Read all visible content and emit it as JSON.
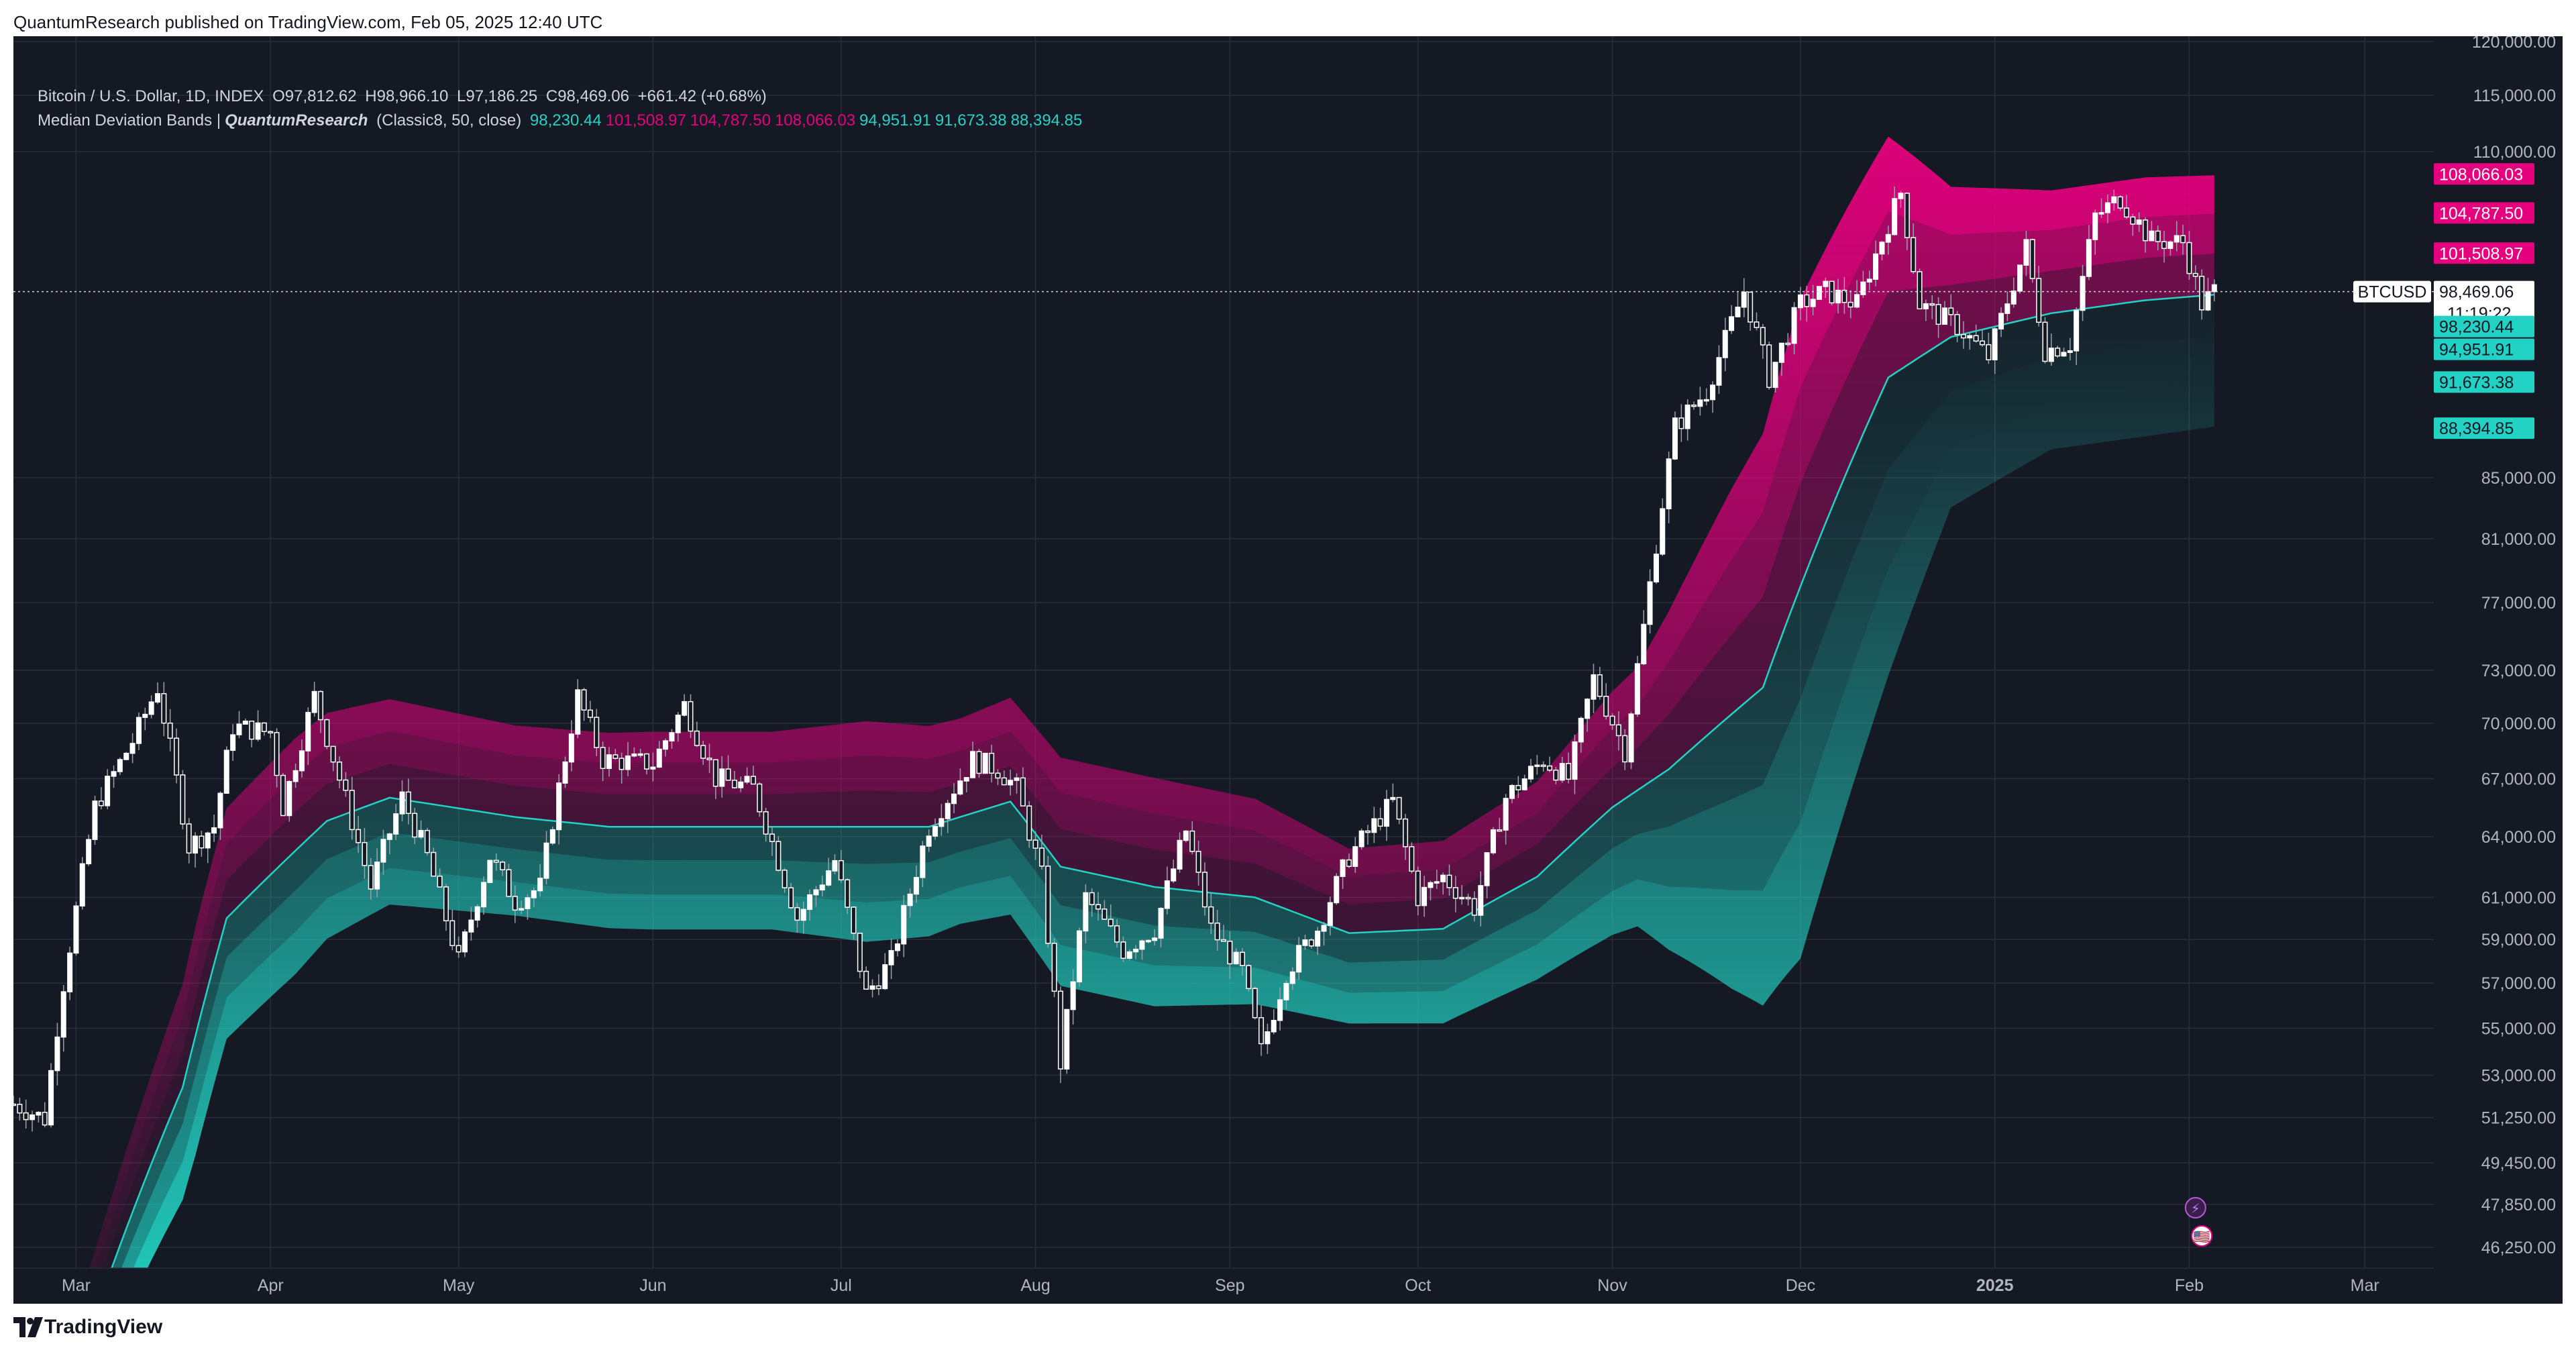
{
  "header": {
    "published_text": "QuantumResearch published on TradingView.com, Feb 05, 2025 12:40 UTC"
  },
  "legend": {
    "symbol_line": "Bitcoin / U.S. Dollar, 1D, INDEX",
    "ohlc": {
      "o_label": "O",
      "o_value": "97,812.62",
      "h_label": "H",
      "h_value": "98,966.10",
      "l_label": "L",
      "l_value": "97,186.25",
      "c_label": "C",
      "c_value": "98,469.06",
      "change": "+661.42 (+0.68%)"
    },
    "indicator_name": "Median Deviation Bands |",
    "indicator_author": "QuantumResearch",
    "indicator_params": "(Classic8, 50, close)",
    "indicator_values": [
      {
        "text": "98,230.44",
        "color": "#22d3c5"
      },
      {
        "text": "101,508.97",
        "color": "#e6007e"
      },
      {
        "text": "104,787.50",
        "color": "#e6007e"
      },
      {
        "text": "108,066.03",
        "color": "#e6007e"
      },
      {
        "text": "94,951.91",
        "color": "#22d3c5"
      },
      {
        "text": "91,673.38",
        "color": "#22d3c5"
      },
      {
        "text": "88,394.85",
        "color": "#22d3c5"
      }
    ]
  },
  "footer": {
    "brand": "TradingView"
  },
  "chart_data": {
    "type": "candlestick",
    "symbol": "BTCUSD",
    "last_price_label": "98,469.06",
    "countdown": "11:19:22",
    "colors": {
      "background": "#151924",
      "upper_band": "#e6007e",
      "lower_band": "#22d3c5",
      "candle_up": "#ffffff",
      "candle_down": "#ffffff",
      "grid": "#2a2e39",
      "axis_text": "#b2b5be"
    },
    "y_axis": {
      "ticks": [
        "120,000.00",
        "115,000.00",
        "110,000.00",
        "85,000.00",
        "81,000.00",
        "77,000.00",
        "73,000.00",
        "70,000.00",
        "67,000.00",
        "64,000.00",
        "61,000.00",
        "59,000.00",
        "57,000.00",
        "55,000.00",
        "53,000.00",
        "51,250.00",
        "49,450.00",
        "47,850.00",
        "46,250.00"
      ],
      "tick_values": [
        120000,
        115000,
        110000,
        85000,
        81000,
        77000,
        73000,
        70000,
        67000,
        64000,
        61000,
        59000,
        57000,
        55000,
        53000,
        51250,
        49450,
        47850,
        46250
      ],
      "scale": "log",
      "range": [
        45500,
        120500
      ]
    },
    "x_axis": {
      "months": [
        {
          "label": "Mar",
          "date": "2024-03-01"
        },
        {
          "label": "Apr",
          "date": "2024-04-01"
        },
        {
          "label": "May",
          "date": "2024-05-01"
        },
        {
          "label": "Jun",
          "date": "2024-06-01"
        },
        {
          "label": "Jul",
          "date": "2024-07-01"
        },
        {
          "label": "Aug",
          "date": "2024-08-01"
        },
        {
          "label": "Sep",
          "date": "2024-09-01"
        },
        {
          "label": "Oct",
          "date": "2024-10-01"
        },
        {
          "label": "Nov",
          "date": "2024-11-01"
        },
        {
          "label": "Dec",
          "date": "2024-12-01"
        },
        {
          "label": "2025",
          "date": "2025-01-01",
          "bold": true
        },
        {
          "label": "Feb",
          "date": "2025-02-01"
        },
        {
          "label": "Mar",
          "date": "2025-03-01"
        }
      ],
      "range": [
        "2024-02-20",
        "2025-03-12"
      ]
    },
    "price_tags": [
      {
        "label": "108,066.03",
        "value": 108066.03,
        "color": "#e6007e",
        "text_color": "#ffffff"
      },
      {
        "label": "104,787.50",
        "value": 104787.5,
        "color": "#e6007e",
        "text_color": "#ffffff"
      },
      {
        "label": "101,508.97",
        "value": 101508.97,
        "color": "#e6007e",
        "text_color": "#ffffff"
      },
      {
        "label": "98,230.44",
        "value": 98230.44,
        "color": "#22d3c5",
        "text_color": "#131722"
      },
      {
        "label": "94,951.91",
        "value": 94951.91,
        "color": "#22d3c5",
        "text_color": "#131722"
      },
      {
        "label": "91,673.38",
        "value": 91673.38,
        "color": "#22d3c5",
        "text_color": "#131722"
      },
      {
        "label": "88,394.85",
        "value": 88394.85,
        "color": "#22d3c5",
        "text_color": "#131722"
      }
    ],
    "price_key_points": [
      [
        "2024-02-20",
        51800
      ],
      [
        "2024-02-25",
        51200
      ],
      [
        "2024-02-28",
        57000
      ],
      [
        "2024-03-04",
        65500
      ],
      [
        "2024-03-10",
        69000
      ],
      [
        "2024-03-14",
        72000
      ],
      [
        "2024-03-19",
        63500
      ],
      [
        "2024-03-23",
        64500
      ],
      [
        "2024-03-26",
        69800
      ],
      [
        "2024-04-01",
        69500
      ],
      [
        "2024-04-03",
        65500
      ],
      [
        "2024-04-08",
        71500
      ],
      [
        "2024-04-12",
        67000
      ],
      [
        "2024-04-17",
        61500
      ],
      [
        "2024-04-22",
        66000
      ],
      [
        "2024-04-26",
        63000
      ],
      [
        "2024-05-01",
        58000
      ],
      [
        "2024-05-06",
        63000
      ],
      [
        "2024-05-10",
        60800
      ],
      [
        "2024-05-14",
        61500
      ],
      [
        "2024-05-20",
        71500
      ],
      [
        "2024-05-24",
        68000
      ],
      [
        "2024-06-01",
        67800
      ],
      [
        "2024-06-06",
        71000
      ],
      [
        "2024-06-11",
        67000
      ],
      [
        "2024-06-17",
        66500
      ],
      [
        "2024-06-24",
        60000
      ],
      [
        "2024-06-30",
        62800
      ],
      [
        "2024-07-05",
        56500
      ],
      [
        "2024-07-09",
        58000
      ],
      [
        "2024-07-15",
        64500
      ],
      [
        "2024-07-22",
        68000
      ],
      [
        "2024-07-26",
        67500
      ],
      [
        "2024-07-29",
        66500
      ],
      [
        "2024-08-02",
        62000
      ],
      [
        "2024-08-05",
        53500
      ],
      [
        "2024-08-09",
        61000
      ],
      [
        "2024-08-15",
        58500
      ],
      [
        "2024-08-20",
        59500
      ],
      [
        "2024-08-25",
        64300
      ],
      [
        "2024-08-29",
        59500
      ],
      [
        "2024-09-03",
        57500
      ],
      [
        "2024-09-06",
        54000
      ],
      [
        "2024-09-10",
        57500
      ],
      [
        "2024-09-15",
        59500
      ],
      [
        "2024-09-20",
        63000
      ],
      [
        "2024-09-27",
        65800
      ],
      [
        "2024-10-01",
        61000
      ],
      [
        "2024-10-05",
        62000
      ],
      [
        "2024-10-10",
        60500
      ],
      [
        "2024-10-15",
        66000
      ],
      [
        "2024-10-21",
        68000
      ],
      [
        "2024-10-25",
        67000
      ],
      [
        "2024-10-29",
        72500
      ],
      [
        "2024-11-03",
        68500
      ],
      [
        "2024-11-06",
        75500
      ],
      [
        "2024-11-11",
        88500
      ],
      [
        "2024-11-16",
        91000
      ],
      [
        "2024-11-22",
        98500
      ],
      [
        "2024-11-26",
        92000
      ],
      [
        "2024-12-01",
        97500
      ],
      [
        "2024-12-05",
        98500
      ],
      [
        "2024-12-10",
        97500
      ],
      [
        "2024-12-17",
        106500
      ],
      [
        "2024-12-20",
        97500
      ],
      [
        "2024-12-26",
        95800
      ],
      [
        "2024-12-31",
        93500
      ],
      [
        "2025-01-06",
        102000
      ],
      [
        "2025-01-09",
        94000
      ],
      [
        "2025-01-13",
        94500
      ],
      [
        "2025-01-17",
        104500
      ],
      [
        "2025-01-21",
        106000
      ],
      [
        "2025-01-26",
        102500
      ],
      [
        "2025-01-31",
        102400
      ],
      [
        "2025-02-03",
        97500
      ],
      [
        "2025-02-05",
        98469
      ]
    ],
    "middle_key_points": [
      [
        "2024-02-20",
        38000
      ],
      [
        "2024-03-01",
        42000
      ],
      [
        "2024-03-18",
        52500
      ],
      [
        "2024-03-25",
        60000
      ],
      [
        "2024-04-10",
        64800
      ],
      [
        "2024-04-20",
        66000
      ],
      [
        "2024-05-10",
        65000
      ],
      [
        "2024-05-25",
        64500
      ],
      [
        "2024-06-15",
        64500
      ],
      [
        "2024-07-01",
        64500
      ],
      [
        "2024-07-15",
        64500
      ],
      [
        "2024-07-28",
        65800
      ],
      [
        "2024-08-05",
        62500
      ],
      [
        "2024-08-20",
        61500
      ],
      [
        "2024-09-05",
        61000
      ],
      [
        "2024-09-20",
        59300
      ],
      [
        "2024-10-05",
        59500
      ],
      [
        "2024-10-20",
        62000
      ],
      [
        "2024-11-01",
        65500
      ],
      [
        "2024-11-10",
        67500
      ],
      [
        "2024-11-25",
        72000
      ],
      [
        "2024-12-05",
        82000
      ],
      [
        "2024-12-15",
        92000
      ],
      [
        "2024-12-25",
        95000
      ],
      [
        "2025-01-10",
        96800
      ],
      [
        "2025-01-25",
        97800
      ],
      [
        "2025-02-05",
        98230
      ]
    ],
    "band_width_key_points": [
      [
        "2024-02-20",
        1.0
      ],
      [
        "2024-03-01",
        1.5
      ],
      [
        "2024-03-20",
        3.0
      ],
      [
        "2024-04-05",
        3.1
      ],
      [
        "2024-04-20",
        2.7
      ],
      [
        "2024-05-10",
        2.5
      ],
      [
        "2024-06-01",
        2.6
      ],
      [
        "2024-06-20",
        2.6
      ],
      [
        "2024-07-05",
        2.9
      ],
      [
        "2024-07-20",
        2.7
      ],
      [
        "2024-08-05",
        3.0
      ],
      [
        "2024-08-20",
        3.0
      ],
      [
        "2024-09-05",
        2.7
      ],
      [
        "2024-09-20",
        2.3
      ],
      [
        "2024-10-05",
        2.4
      ],
      [
        "2024-10-20",
        2.6
      ],
      [
        "2024-11-05",
        3.4
      ],
      [
        "2024-11-20",
        6.5
      ],
      [
        "2024-12-01",
        8.5
      ],
      [
        "2024-12-15",
        7.0
      ],
      [
        "2024-12-25",
        4.2
      ],
      [
        "2025-01-10",
        3.4
      ],
      [
        "2025-01-25",
        3.4
      ],
      [
        "2025-02-05",
        3.3
      ]
    ]
  },
  "event_icons": [
    {
      "name": "lightning-event-icon",
      "symbol": "⚡",
      "date": "2025-02-02"
    },
    {
      "name": "us-flag-event-icon",
      "symbol": "🇺🇸",
      "date": "2025-02-03"
    }
  ]
}
